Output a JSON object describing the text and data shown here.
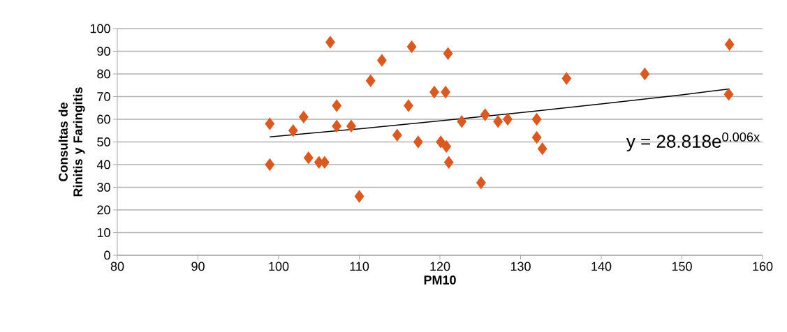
{
  "chart_data": {
    "type": "scatter",
    "xlabel": "PM10",
    "ylabel": "Consultas de  Rinitis y Faringitis",
    "marker": "diamond",
    "grid": "y",
    "xlim": [
      80,
      160
    ],
    "xticks": [
      80,
      90,
      100,
      110,
      120,
      130,
      140,
      150,
      160
    ],
    "ylim": [
      0,
      100
    ],
    "yticks": [
      0,
      10,
      20,
      30,
      40,
      50,
      60,
      70,
      80,
      90,
      100
    ],
    "annotations": [
      "y = 28.818e$^{0.006x}$"
    ],
    "series": [
      {
        "color": "#d95a21",
        "x": [
          98.9,
          98.9,
          101.8,
          103.1,
          103.7,
          105,
          105.7,
          106.4,
          107.2,
          107.2,
          109,
          110,
          111.4,
          112.8,
          114.7,
          116.1,
          116.5,
          117.3,
          119.3,
          120.1,
          120.7,
          120.8,
          121,
          121.1,
          122.7,
          125.1,
          125.6,
          127.2,
          128.4,
          132,
          132,
          132.7,
          135.7,
          145.4,
          155.9,
          155.8
        ],
        "values": [
          58,
          40,
          55,
          61,
          43,
          41,
          41,
          94,
          66,
          57,
          57,
          26,
          77,
          86,
          53,
          66,
          92,
          50,
          72,
          50,
          72,
          48,
          89,
          41,
          59,
          32,
          62,
          59,
          60,
          60,
          52,
          47,
          78,
          80,
          93,
          71
        ]
      },
      {
        "type": "line",
        "color": "#000000",
        "marker": "none",
        "x": [
          98.9,
          110,
          120,
          130,
          140,
          150,
          155.9
        ],
        "values": [
          52.2,
          55.8,
          59.3,
          62.9,
          66.8,
          70.8,
          73.4
        ]
      }
    ]
  }
}
